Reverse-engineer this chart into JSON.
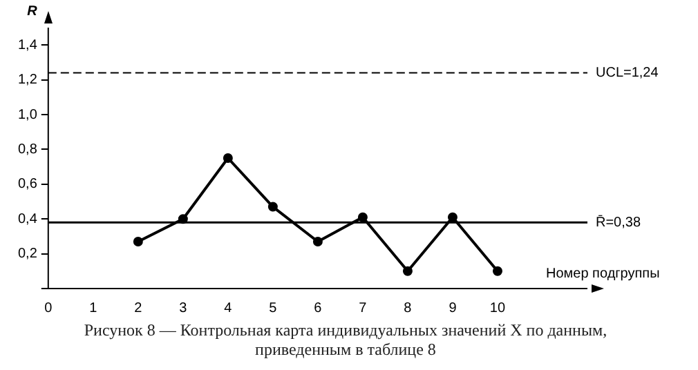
{
  "chart_data": {
    "type": "line",
    "xlabel": "Номер подгруппы",
    "ylabel": "R",
    "x": [
      2,
      3,
      4,
      5,
      6,
      7,
      8,
      9,
      10
    ],
    "series": [
      {
        "color": "#000000",
        "values": [
          0.27,
          0.4,
          0.75,
          0.47,
          0.27,
          0.41,
          0.1,
          0.41,
          0.1
        ]
      }
    ],
    "xlim": [
      0,
      12
    ],
    "xticks": [
      0,
      1,
      2,
      3,
      4,
      5,
      6,
      7,
      8,
      9,
      10
    ],
    "ylim": [
      0,
      1.5
    ],
    "yticks": [
      {
        "value": 0,
        "label": null
      },
      {
        "value": 0.2,
        "label": "0,2"
      },
      {
        "value": 0.4,
        "label": "0,4"
      },
      {
        "value": 0.6,
        "label": "0,6"
      },
      {
        "value": 0.8,
        "label": "0,8"
      },
      {
        "value": 1.0,
        "label": "1,0"
      },
      {
        "value": 1.2,
        "label": "1,2"
      },
      {
        "value": 1.4,
        "label": "1,4"
      }
    ],
    "ref_lines": [
      {
        "axis": "y",
        "value": 1.24,
        "label": "UCL=1,24",
        "line_style": "dashed",
        "color": "#000000"
      },
      {
        "axis": "y",
        "value": 0.38,
        "label": "R̄=0,38",
        "line_style": "solid",
        "color": "#000000"
      }
    ],
    "annotations": [
      "Рисунок 8 — Контрольная карта индивидуальных значений X по данным, приведенным в таблице 8"
    ],
    "grid": false,
    "legend": false,
    "marker": "circle",
    "line_style": "solid"
  }
}
